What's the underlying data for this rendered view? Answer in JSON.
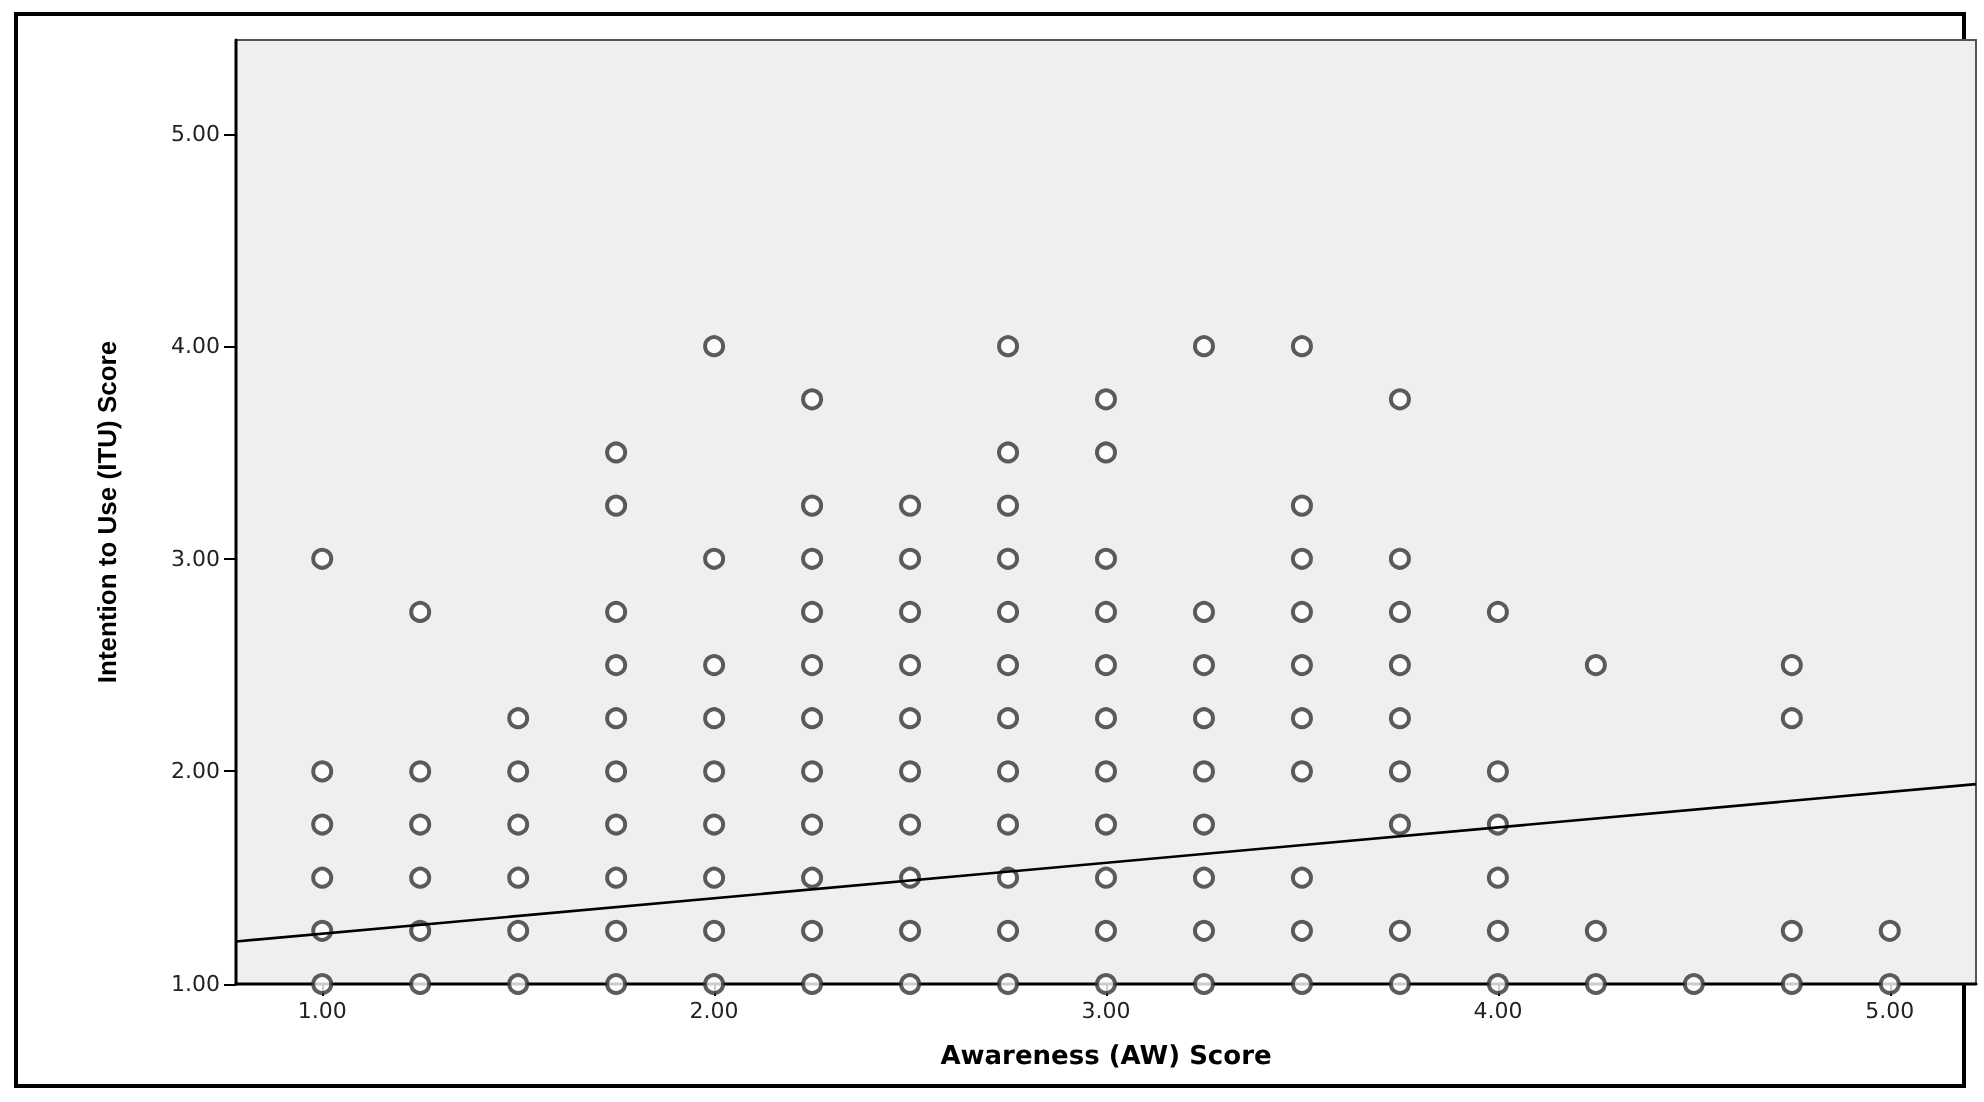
{
  "chart_data": {
    "type": "scatter",
    "xlabel": "Awareness (AW) Score",
    "ylabel": "Intention to Use (ITU) Score",
    "xlim": [
      0.78,
      5.22
    ],
    "ylim": [
      1,
      5.44
    ],
    "xticks": [
      {
        "value": 1,
        "label": "1.00"
      },
      {
        "value": 2,
        "label": "2.00"
      },
      {
        "value": 3,
        "label": "3.00"
      },
      {
        "value": 4,
        "label": "4.00"
      },
      {
        "value": 5,
        "label": "5.00"
      }
    ],
    "yticks": [
      {
        "value": 1,
        "label": "1.00"
      },
      {
        "value": 2,
        "label": "2.00"
      },
      {
        "value": 3,
        "label": "3.00"
      },
      {
        "value": 4,
        "label": "4.00"
      },
      {
        "value": 5,
        "label": "5.00"
      }
    ],
    "marker": "circle",
    "series": [
      {
        "color": "#333333",
        "x": [
          1,
          1,
          1,
          1,
          1,
          1,
          1.25,
          1.25,
          1.25,
          1.25,
          1.25,
          1.25,
          1.5,
          1.5,
          1.5,
          1.5,
          1.5,
          1.5,
          1.75,
          1.75,
          1.75,
          1.75,
          1.75,
          1.75,
          1.75,
          1.75,
          1.75,
          1.75,
          2,
          2,
          2,
          2,
          2,
          2,
          2,
          2,
          2,
          2.25,
          2.25,
          2.25,
          2.25,
          2.25,
          2.25,
          2.25,
          2.25,
          2.25,
          2.25,
          2.25,
          2.5,
          2.5,
          2.5,
          2.5,
          2.5,
          2.5,
          2.5,
          2.5,
          2.5,
          2.5,
          2.75,
          2.75,
          2.75,
          2.75,
          2.75,
          2.75,
          2.75,
          2.75,
          2.75,
          2.75,
          2.75,
          2.75,
          3,
          3,
          3,
          3,
          3,
          3,
          3,
          3,
          3,
          3,
          3,
          3.25,
          3.25,
          3.25,
          3.25,
          3.25,
          3.25,
          3.25,
          3.25,
          3.25,
          3.5,
          3.5,
          3.5,
          3.5,
          3.5,
          3.5,
          3.5,
          3.5,
          3.5,
          3.5,
          3.75,
          3.75,
          3.75,
          3.75,
          3.75,
          3.75,
          3.75,
          3.75,
          3.75,
          4,
          4,
          4,
          4,
          4,
          4,
          4.25,
          4.25,
          4.25,
          4.5,
          4.75,
          4.75,
          4.75,
          4.75,
          5,
          5
        ],
        "values": [
          1,
          1.25,
          1.5,
          1.75,
          2,
          3,
          1,
          1.25,
          1.5,
          1.75,
          2,
          2.75,
          1,
          1.25,
          1.5,
          1.75,
          2,
          2.25,
          1,
          1.25,
          1.5,
          1.75,
          2,
          2.25,
          2.5,
          2.75,
          3.25,
          3.5,
          1,
          1.25,
          1.5,
          1.75,
          2,
          2.25,
          2.5,
          3,
          4,
          1,
          1.25,
          1.5,
          1.75,
          2,
          2.25,
          2.5,
          2.75,
          3,
          3.25,
          3.75,
          1,
          1.25,
          1.5,
          1.75,
          2,
          2.25,
          2.5,
          2.75,
          3,
          3.25,
          1,
          1.25,
          1.5,
          1.75,
          2,
          2.25,
          2.5,
          2.75,
          3,
          3.25,
          3.5,
          4,
          1,
          1.25,
          1.5,
          1.75,
          2,
          2.25,
          2.5,
          2.75,
          3,
          3.5,
          3.75,
          1,
          1.25,
          1.5,
          1.75,
          2,
          2.25,
          2.5,
          2.75,
          4,
          1,
          1.25,
          1.5,
          2,
          2.25,
          2.5,
          2.75,
          3,
          3.25,
          4,
          1,
          1.25,
          1.75,
          2,
          2.25,
          2.5,
          2.75,
          3,
          3.75,
          1,
          1.25,
          1.5,
          1.75,
          2,
          2.75,
          1,
          1.25,
          2.5,
          1,
          1,
          1.25,
          2.25,
          2.5,
          1,
          1.25
        ]
      },
      {
        "type": "line",
        "color": "#000000",
        "marker": "none",
        "line_style": "solid",
        "x": [
          0.78,
          5.22
        ],
        "values": [
          1.2,
          1.94
        ]
      }
    ]
  }
}
